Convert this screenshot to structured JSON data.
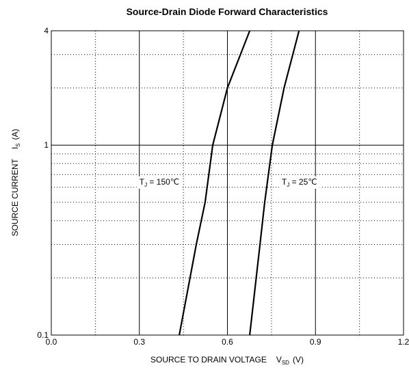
{
  "chart_data": {
    "type": "line",
    "title": "Source-Drain Diode Forward Characteristics",
    "xlabel": {
      "main": "SOURCE TO DRAIN VOLTAGE",
      "symbol": "V",
      "sub": "SD",
      "unit": "(V)"
    },
    "ylabel": {
      "main": "SOURCE CURRENT",
      "symbol": "I",
      "sub": "S",
      "unit": "(A)"
    },
    "xlim": [
      0,
      1.2
    ],
    "ylim": [
      0.1,
      4
    ],
    "log_y": true,
    "grid": true,
    "xticks": [
      {
        "value": 0,
        "label": "0.0"
      },
      0.3,
      0.6,
      0.9,
      1.2
    ],
    "yticks": [
      0.1,
      1,
      4
    ],
    "xminor": [
      0.15,
      0.45,
      0.75,
      1.05
    ],
    "yminor": [
      0.2,
      0.3,
      0.4,
      0.5,
      0.6,
      0.7,
      0.8,
      0.9,
      2,
      3
    ],
    "series": [
      {
        "name": "T_J = 150℃",
        "color": "#000000",
        "x": [
          0.436,
          0.494,
          0.524,
          0.55,
          0.6,
          0.676
        ],
        "values": [
          0.1,
          0.3,
          0.5,
          1,
          2,
          4
        ]
      },
      {
        "name": "T_J = 25℃",
        "color": "#000000",
        "x": [
          0.676,
          0.711,
          0.727,
          0.753,
          0.793,
          0.844
        ],
        "values": [
          0.1,
          0.3,
          0.5,
          1,
          2,
          4
        ]
      }
    ],
    "annotations": [
      {
        "symbol": "T",
        "sub": "J",
        "text": " = 150℃",
        "x": 0.3,
        "y": 0.62
      },
      {
        "symbol": "T",
        "sub": "J",
        "text": " = 25℃",
        "x": 0.785,
        "y": 0.62
      }
    ]
  }
}
